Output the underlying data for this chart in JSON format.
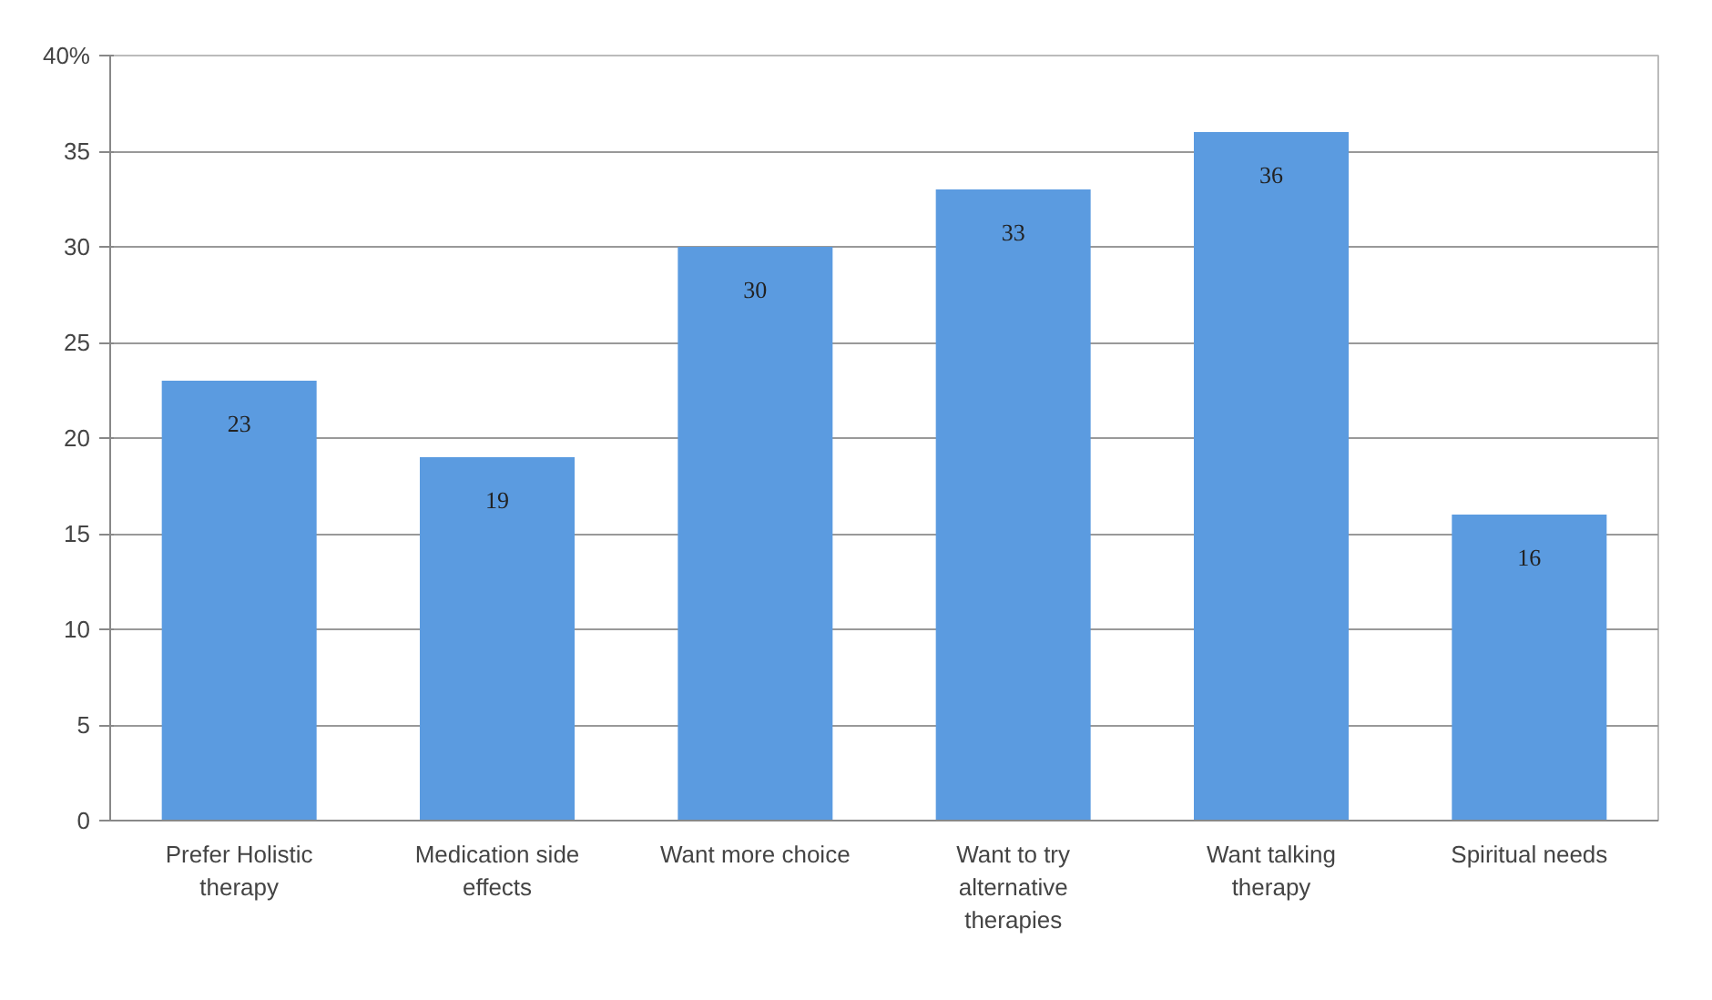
{
  "chart_data": {
    "type": "bar",
    "categories": [
      "Prefer Holistic therapy",
      "Medication side effects",
      "Want more choice",
      "Want to try alternative therapies",
      "Want talking therapy",
      "Spiritual needs"
    ],
    "values": [
      23,
      19,
      30,
      33,
      36,
      16
    ],
    "color": "#5b9be0",
    "ylim": [
      0,
      40
    ],
    "yticks": [
      0,
      5,
      10,
      15,
      20,
      25,
      30,
      35,
      {
        "value": 40,
        "label": "40%"
      }
    ],
    "grid": "y",
    "data_labels": true
  }
}
